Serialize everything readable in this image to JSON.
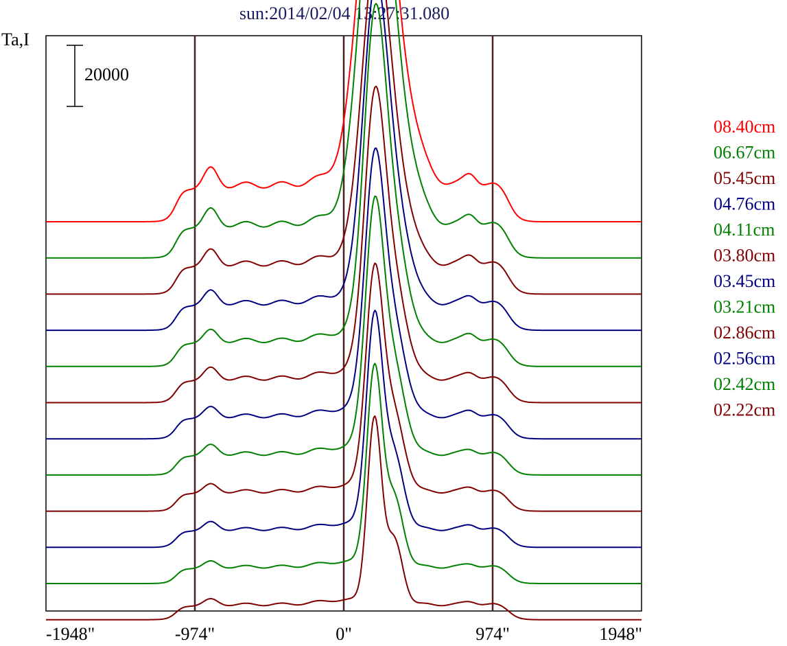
{
  "chart_data": {
    "type": "line",
    "title": "sun:2014/02/04 13:27:31.080",
    "ylabel": "Ta,I",
    "xlabel": "",
    "x_tick_labels": [
      "-1948\"",
      "-974\"",
      "0\"",
      "974\"",
      "1948\""
    ],
    "x_ticks": [
      -1948,
      -974,
      0,
      974,
      1948
    ],
    "xlim": [
      -1948,
      1948
    ],
    "vertical_lines": [
      -974,
      0,
      974
    ],
    "scale_bar": {
      "label": "20000",
      "value": 20000
    },
    "grid": false,
    "legend_position": "right",
    "series": [
      {
        "name": "08.40cm",
        "color": "#ff0000",
        "offset": 0,
        "peak": 96000,
        "limb": 12000,
        "core_width": 150,
        "bumps": [
          [
            -870,
            5000
          ],
          [
            830,
            4000
          ]
        ]
      },
      {
        "name": "06.67cm",
        "color": "#008000",
        "offset": 1,
        "peak": 102000,
        "limb": 11000,
        "core_width": 140,
        "bumps": [
          [
            -870,
            4500
          ],
          [
            830,
            3500
          ]
        ]
      },
      {
        "name": "05.45cm",
        "color": "#800000",
        "offset": 2,
        "peak": 88000,
        "limb": 10000,
        "core_width": 120,
        "bumps": [
          [
            -870,
            4000
          ],
          [
            830,
            3000
          ]
        ]
      },
      {
        "name": "04.76cm",
        "color": "#000080",
        "offset": 3,
        "peak": 92000,
        "limb": 9000,
        "core_width": 110,
        "bumps": [
          [
            -870,
            3500
          ],
          [
            830,
            2500
          ]
        ]
      },
      {
        "name": "04.11cm",
        "color": "#008000",
        "offset": 4,
        "peak": 98000,
        "limb": 8500,
        "core_width": 100,
        "bumps": [
          [
            -870,
            3000
          ],
          [
            830,
            2500
          ]
        ]
      },
      {
        "name": "03.80cm",
        "color": "#800000",
        "offset": 5,
        "peak": 86000,
        "limb": 8000,
        "core_width": 95,
        "bumps": [
          [
            -870,
            3000
          ],
          [
            830,
            2000
          ]
        ]
      },
      {
        "name": "03.45cm",
        "color": "#000080",
        "offset": 6,
        "peak": 80000,
        "limb": 7500,
        "core_width": 90,
        "bumps": [
          [
            -870,
            2500
          ],
          [
            830,
            2000
          ]
        ]
      },
      {
        "name": "03.21cm",
        "color": "#008000",
        "offset": 7,
        "peak": 78000,
        "limb": 7000,
        "core_width": 85,
        "bumps": [
          [
            -870,
            2500
          ],
          [
            830,
            1500
          ]
        ]
      },
      {
        "name": "02.86cm",
        "color": "#800000",
        "offset": 8,
        "peak": 70000,
        "limb": 6500,
        "core_width": 80,
        "bumps": [
          [
            -870,
            2000
          ],
          [
            830,
            1500
          ]
        ]
      },
      {
        "name": "02.56cm",
        "color": "#000080",
        "offset": 9,
        "peak": 68000,
        "limb": 6000,
        "core_width": 75,
        "bumps": [
          [
            -870,
            2000
          ],
          [
            830,
            1500
          ]
        ]
      },
      {
        "name": "02.42cm",
        "color": "#008000",
        "offset": 10,
        "peak": 64000,
        "limb": 5500,
        "core_width": 70,
        "bumps": [
          [
            -870,
            1500
          ],
          [
            830,
            1000
          ]
        ]
      },
      {
        "name": "02.22cm",
        "color": "#800000",
        "offset": 11,
        "peak": 60000,
        "limb": 5000,
        "core_width": 65,
        "bumps": [
          [
            -870,
            1500
          ],
          [
            830,
            1000
          ]
        ]
      }
    ]
  }
}
